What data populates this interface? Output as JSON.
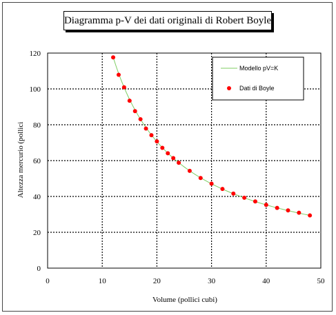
{
  "chart_data": {
    "type": "scatter",
    "title": "Diagramma p-V dei dati originali di Robert Boyle",
    "xlabel": "Volume (pollici cubi)",
    "ylabel": "Altezza mercurio (pollici",
    "xlim": [
      0,
      50
    ],
    "ylim": [
      0,
      120
    ],
    "x_ticks": [
      "0",
      "10",
      "20",
      "30",
      "40",
      "50"
    ],
    "y_ticks": [
      "0",
      "20",
      "40",
      "60",
      "80",
      "100",
      "120"
    ],
    "grid": true,
    "legend": "top-right",
    "series": [
      {
        "name": "Modello pV=K",
        "kind": "line",
        "color": "#7ccc62",
        "k": 1412,
        "x_range": [
          12,
          48
        ]
      },
      {
        "name": "Dati di Boyle",
        "kind": "points",
        "color": "#ff0000",
        "x": [
          12,
          13,
          14,
          15,
          16,
          17,
          18,
          19,
          20,
          21,
          22,
          23,
          24,
          26,
          28,
          30,
          32,
          34,
          36,
          38,
          40,
          42,
          44,
          46,
          48
        ],
        "y": [
          117.6,
          107.9,
          100.9,
          93.4,
          87.6,
          83.1,
          77.9,
          74.2,
          70.7,
          67.1,
          64.1,
          61.4,
          58.8,
          54.3,
          50.3,
          47.1,
          44.2,
          41.6,
          39.3,
          37.2,
          35.3,
          33.6,
          32.2,
          30.9,
          29.4
        ]
      }
    ]
  }
}
